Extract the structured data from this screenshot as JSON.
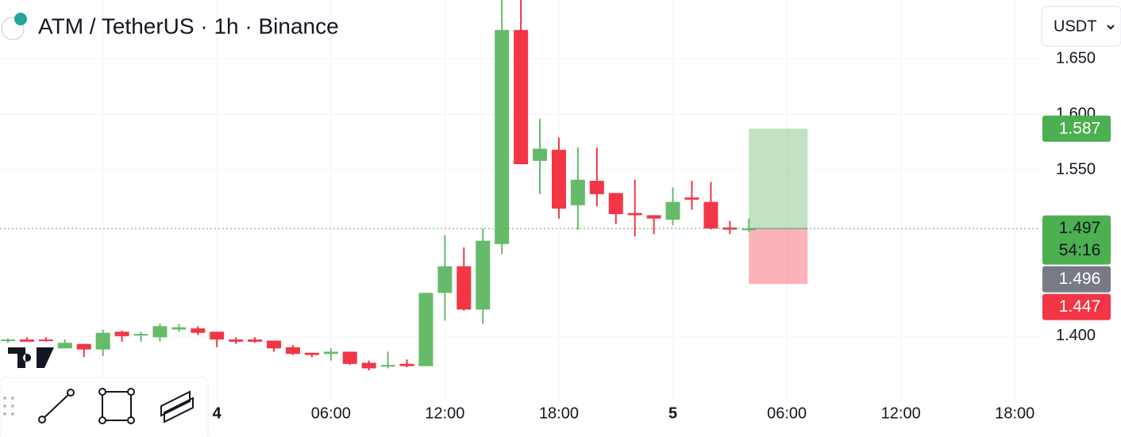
{
  "chart_data": {
    "type": "candlestick",
    "title": "ATM / TetherUS · 1h · Binance",
    "currency": "USDT",
    "categories": [
      null,
      null,
      null,
      null,
      null,
      null,
      null,
      null,
      null,
      null,
      null,
      "4",
      null,
      null,
      null,
      null,
      null,
      "06:00",
      null,
      null,
      null,
      null,
      null,
      "12:00",
      null,
      null,
      null,
      null,
      null,
      "18:00",
      null,
      null,
      null,
      null,
      null,
      "5",
      null,
      null,
      null,
      null,
      null,
      "06:00",
      null,
      null,
      null,
      null,
      null,
      "12:00",
      null,
      null,
      null,
      null,
      null,
      "18:00"
    ],
    "open": [
      1.396,
      1.397,
      1.397,
      1.389,
      1.393,
      1.388,
      1.404,
      1.401,
      1.399,
      1.406,
      1.407,
      1.404,
      1.397,
      1.397,
      1.396,
      1.39,
      1.385,
      1.384,
      1.386,
      1.376,
      1.373,
      1.375,
      1.373,
      1.439,
      1.463,
      1.424,
      1.483,
      1.676,
      1.558,
      1.568,
      1.518,
      1.54,
      1.529,
      1.511,
      1.509,
      1.505,
      1.525,
      1.521,
      1.498,
      1.496,
      null,
      null,
      null,
      null,
      null,
      null,
      null,
      null,
      null,
      null,
      null,
      null,
      null,
      null
    ],
    "high": [
      1.398,
      1.399,
      1.399,
      1.397,
      1.393,
      1.406,
      1.405,
      1.404,
      1.411,
      1.411,
      1.409,
      1.404,
      1.399,
      1.399,
      1.396,
      1.392,
      1.385,
      1.389,
      1.386,
      1.378,
      1.386,
      1.379,
      1.439,
      1.491,
      1.48,
      1.497,
      1.71,
      1.71,
      1.596,
      1.579,
      1.57,
      1.57,
      1.529,
      1.541,
      1.509,
      1.534,
      1.54,
      1.539,
      1.504,
      1.506,
      null,
      null,
      null,
      null,
      null,
      null,
      null,
      null,
      null,
      null,
      null,
      null,
      null,
      null
    ],
    "low": [
      1.394,
      1.395,
      1.395,
      1.389,
      1.381,
      1.382,
      1.395,
      1.395,
      1.395,
      1.404,
      1.401,
      1.39,
      1.393,
      1.394,
      1.386,
      1.383,
      1.381,
      1.378,
      1.374,
      1.369,
      1.371,
      1.372,
      1.373,
      1.414,
      1.423,
      1.411,
      1.474,
      1.555,
      1.528,
      1.506,
      1.496,
      1.517,
      1.501,
      1.49,
      1.492,
      1.5,
      1.514,
      1.496,
      1.492,
      1.494,
      null,
      null,
      null,
      null,
      null,
      null,
      null,
      null,
      null,
      null,
      null,
      null,
      null,
      null
    ],
    "close": [
      1.397,
      1.395,
      1.396,
      1.394,
      1.388,
      1.403,
      1.4,
      1.402,
      1.409,
      1.408,
      1.403,
      1.397,
      1.395,
      1.395,
      1.389,
      1.384,
      1.383,
      1.386,
      1.375,
      1.371,
      1.374,
      1.373,
      1.439,
      1.463,
      1.424,
      1.486,
      1.676,
      1.555,
      1.569,
      1.515,
      1.541,
      1.528,
      1.51,
      1.509,
      1.506,
      1.521,
      1.523,
      1.497,
      1.496,
      1.497,
      null,
      null,
      null,
      null,
      null,
      null,
      null,
      null,
      null,
      null,
      null,
      null,
      null,
      null
    ],
    "up_color": "#66bb6a",
    "down_color": "#f23645",
    "ylim": [
      1.342,
      1.703
    ],
    "yticks": [
      {
        "value": 1.4,
        "label": "1.400"
      },
      {
        "value": 1.55,
        "label": "1.550"
      },
      {
        "value": 1.6,
        "label": "1.600"
      },
      {
        "value": 1.65,
        "label": "1.650"
      }
    ],
    "grid": true,
    "position": {
      "entry": 1.497,
      "target": 1.587,
      "stop": 1.447
    },
    "price_labels": [
      {
        "value": 1.587,
        "label": "1.587",
        "color": "#4caf50"
      },
      {
        "value": 1.497,
        "label": "1.497",
        "countdown": "54:16",
        "color": "#4caf50"
      },
      {
        "value": 1.496,
        "label": "1.496",
        "color": "#787b86"
      },
      {
        "value": 1.447,
        "label": "1.447",
        "color": "#f23645"
      }
    ]
  }
}
